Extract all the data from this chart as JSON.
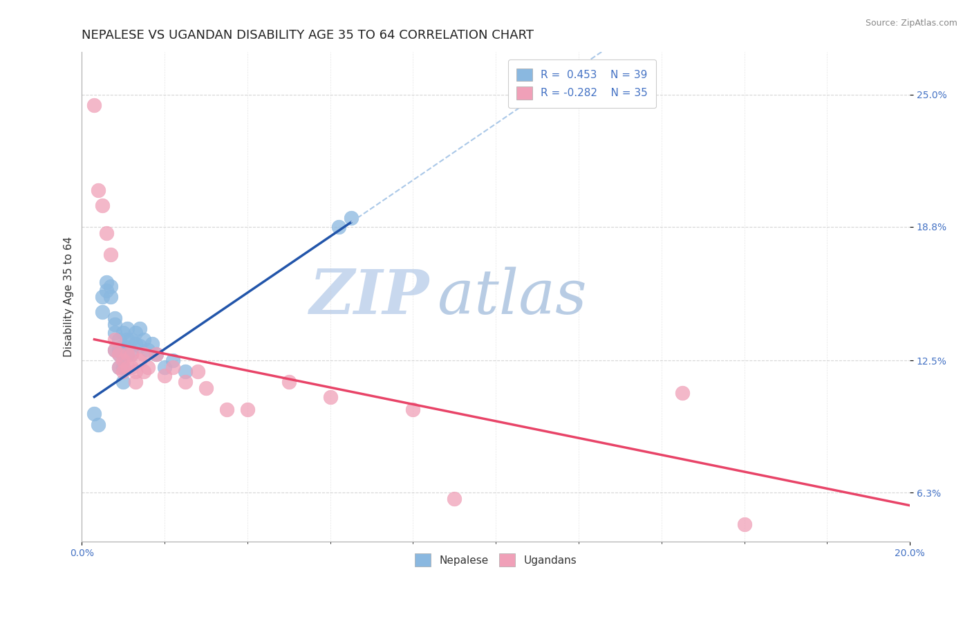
{
  "title": "NEPALESE VS UGANDAN DISABILITY AGE 35 TO 64 CORRELATION CHART",
  "source": "Source: ZipAtlas.com",
  "ylabel": "Disability Age 35 to 64",
  "xlim": [
    0.0,
    0.2
  ],
  "ylim": [
    0.04,
    0.27
  ],
  "ytick_labels": [
    "6.3%",
    "12.5%",
    "18.8%",
    "25.0%"
  ],
  "ytick_positions": [
    0.063,
    0.125,
    0.188,
    0.25
  ],
  "nepalese_color": "#8ab8e0",
  "ugandan_color": "#f0a0b8",
  "nepalese_line_color": "#2255aa",
  "ugandan_line_color": "#e84468",
  "dashed_line_color": "#aac8e8",
  "nepalese_x": [
    0.003,
    0.004,
    0.005,
    0.005,
    0.006,
    0.006,
    0.007,
    0.007,
    0.008,
    0.008,
    0.008,
    0.008,
    0.009,
    0.009,
    0.009,
    0.009,
    0.01,
    0.01,
    0.01,
    0.01,
    0.01,
    0.011,
    0.011,
    0.011,
    0.012,
    0.012,
    0.013,
    0.013,
    0.014,
    0.014,
    0.015,
    0.016,
    0.017,
    0.018,
    0.02,
    0.022,
    0.025,
    0.062,
    0.065
  ],
  "nepalese_y": [
    0.1,
    0.095,
    0.155,
    0.148,
    0.162,
    0.158,
    0.16,
    0.155,
    0.145,
    0.142,
    0.138,
    0.13,
    0.135,
    0.13,
    0.128,
    0.122,
    0.138,
    0.132,
    0.128,
    0.122,
    0.115,
    0.14,
    0.135,
    0.128,
    0.135,
    0.128,
    0.138,
    0.133,
    0.14,
    0.132,
    0.135,
    0.13,
    0.133,
    0.128,
    0.122,
    0.125,
    0.12,
    0.188,
    0.192
  ],
  "ugandan_x": [
    0.003,
    0.004,
    0.005,
    0.006,
    0.007,
    0.008,
    0.008,
    0.009,
    0.009,
    0.01,
    0.01,
    0.011,
    0.011,
    0.012,
    0.012,
    0.013,
    0.013,
    0.014,
    0.015,
    0.015,
    0.016,
    0.018,
    0.02,
    0.022,
    0.025,
    0.028,
    0.03,
    0.035,
    0.04,
    0.05,
    0.06,
    0.08,
    0.09,
    0.145,
    0.16
  ],
  "ugandan_y": [
    0.245,
    0.205,
    0.198,
    0.185,
    0.175,
    0.135,
    0.13,
    0.128,
    0.122,
    0.125,
    0.12,
    0.128,
    0.122,
    0.128,
    0.122,
    0.12,
    0.115,
    0.125,
    0.128,
    0.12,
    0.122,
    0.128,
    0.118,
    0.122,
    0.115,
    0.12,
    0.112,
    0.102,
    0.102,
    0.115,
    0.108,
    0.102,
    0.06,
    0.11,
    0.048
  ],
  "nep_line_x0": 0.003,
  "nep_line_x1": 0.065,
  "nep_line_y0": 0.108,
  "nep_line_y1": 0.19,
  "dash_line_x0": 0.065,
  "dash_line_x1": 0.2,
  "uga_line_x0": 0.003,
  "uga_line_x1": 0.2,
  "uga_line_y0": 0.135,
  "uga_line_y1": 0.057,
  "background_color": "#ffffff",
  "grid_color": "#cccccc",
  "watermark_zip": "ZIP",
  "watermark_atlas": "atlas",
  "watermark_color": "#c8d8ee",
  "title_fontsize": 13,
  "axis_label_fontsize": 11,
  "tick_fontsize": 10,
  "legend_fontsize": 11
}
